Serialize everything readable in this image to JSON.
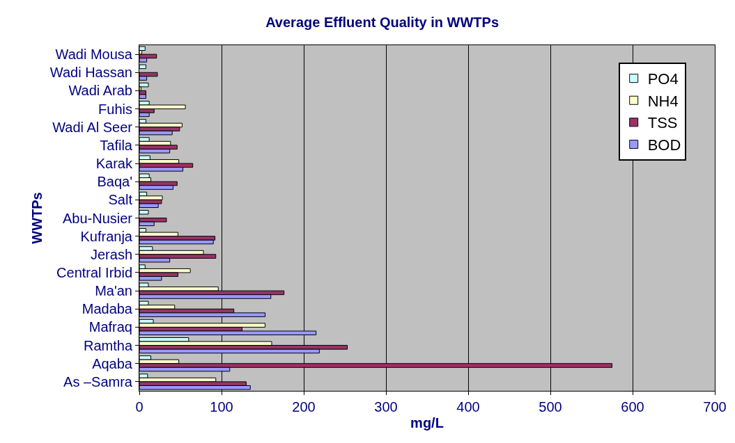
{
  "chart_data": {
    "type": "bar",
    "orientation": "horizontal",
    "title": "Average Effluent Quality in WWTPs",
    "xlabel": "mg/L",
    "ylabel": "WWTPs",
    "categories": [
      "Wadi Mousa",
      "Wadi Hassan",
      "Wadi Arab",
      "Fuhis",
      "Wadi Al Seer",
      "Tafila",
      "Karak",
      "Baqa'",
      "Salt",
      "Abu-Nusier",
      "Kufranja",
      "Jerash",
      "Central Irbid",
      "Ma'an",
      "Madaba",
      "Mafraq",
      "Ramtha",
      "Aqaba",
      "As –Samra"
    ],
    "series": [
      {
        "name": "PO4",
        "color": "#ccffff",
        "values": [
          7,
          8,
          11,
          12,
          8,
          12,
          13,
          12,
          9,
          11,
          8,
          16,
          7,
          11,
          11,
          17,
          60,
          14,
          10
        ]
      },
      {
        "name": "NH4",
        "color": "#ffffcc",
        "values": [
          3,
          null,
          2,
          56,
          52,
          38,
          48,
          14,
          28,
          null,
          47,
          78,
          62,
          96,
          43,
          153,
          161,
          48,
          93
        ]
      },
      {
        "name": "TSS",
        "color": "#993366",
        "values": [
          21,
          22,
          8,
          18,
          49,
          46,
          65,
          46,
          27,
          33,
          92,
          93,
          47,
          176,
          115,
          125,
          253,
          575,
          130
        ]
      },
      {
        "name": "BOD",
        "color": "#9999ff",
        "values": [
          9,
          9,
          8,
          12,
          40,
          37,
          53,
          41,
          23,
          18,
          90,
          37,
          27,
          160,
          153,
          215,
          219,
          110,
          135
        ]
      }
    ],
    "xlim": [
      0,
      700
    ],
    "xticks": [
      0,
      100,
      200,
      300,
      400,
      500,
      600,
      700
    ],
    "grid": "x",
    "legend": "top right"
  }
}
